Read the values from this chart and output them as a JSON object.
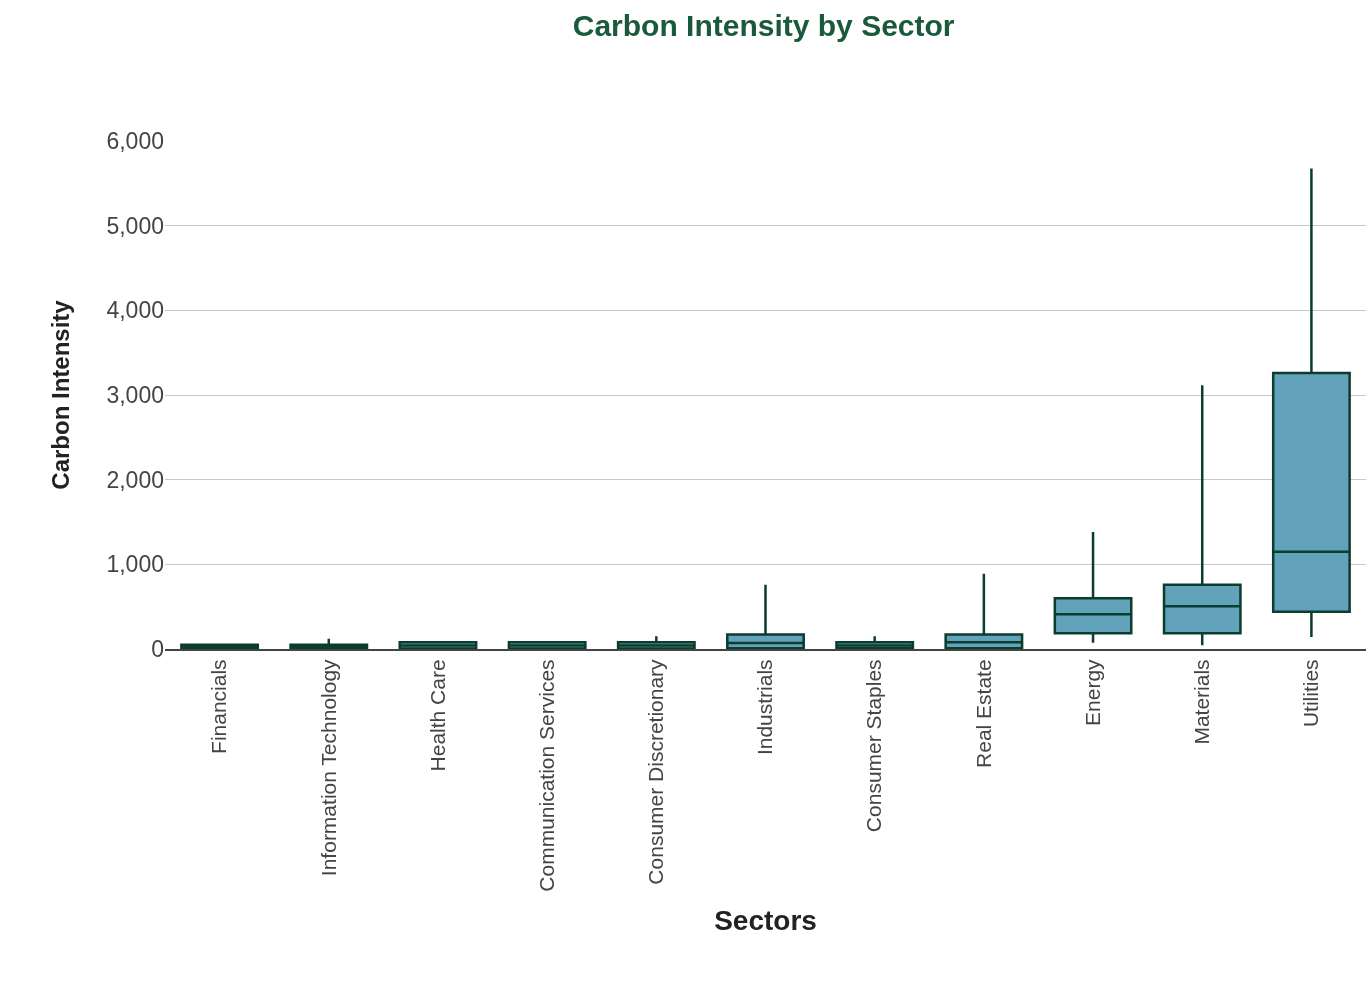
{
  "chart_data": {
    "type": "box",
    "title": "Carbon Intensity by Sector",
    "xlabel": "Sectors",
    "ylabel": "Carbon Intensity",
    "categories": [
      "Financials",
      "Information Technology",
      "Health Care",
      "Communication Services",
      "Consumer Discretionary",
      "Industrials",
      "Consumer Staples",
      "Real Estate",
      "Energy",
      "Materials",
      "Utilities"
    ],
    "series": [
      {
        "color": "#62a3bb",
        "boxes": [
          {
            "low": 0,
            "q1": 5,
            "median": 20,
            "q3": 50,
            "high": 50
          },
          {
            "low": 0,
            "q1": 5,
            "median": 20,
            "q3": 50,
            "high": 120
          },
          {
            "low": 0,
            "q1": 5,
            "median": 40,
            "q3": 80,
            "high": 80
          },
          {
            "low": 0,
            "q1": 5,
            "median": 40,
            "q3": 80,
            "high": 80
          },
          {
            "low": 0,
            "q1": 5,
            "median": 40,
            "q3": 80,
            "high": 150
          },
          {
            "low": 5,
            "q1": 10,
            "median": 70,
            "q3": 170,
            "high": 760
          },
          {
            "low": 10,
            "q1": 10,
            "median": 40,
            "q3": 80,
            "high": 150
          },
          {
            "low": 0,
            "q1": 10,
            "median": 80,
            "q3": 170,
            "high": 890
          },
          {
            "low": 75,
            "q1": 187,
            "median": 409,
            "q3": 600,
            "high": 1382
          },
          {
            "low": 44,
            "q1": 187,
            "median": 504,
            "q3": 759,
            "high": 3114
          },
          {
            "low": 143,
            "q1": 441,
            "median": 1148,
            "q3": 3260,
            "high": 5675
          }
        ]
      }
    ],
    "ylim": [
      0,
      6000
    ],
    "yticks": [
      {
        "value": 0,
        "label": "0"
      },
      {
        "value": 1000,
        "label": "1,000"
      },
      {
        "value": 2000,
        "label": "2,000"
      },
      {
        "value": 3000,
        "label": "3,000"
      },
      {
        "value": 4000,
        "label": "4,000"
      },
      {
        "value": 5000,
        "label": "5,000"
      },
      {
        "value": 6000,
        "label": "6,000"
      }
    ],
    "grid": "y"
  }
}
